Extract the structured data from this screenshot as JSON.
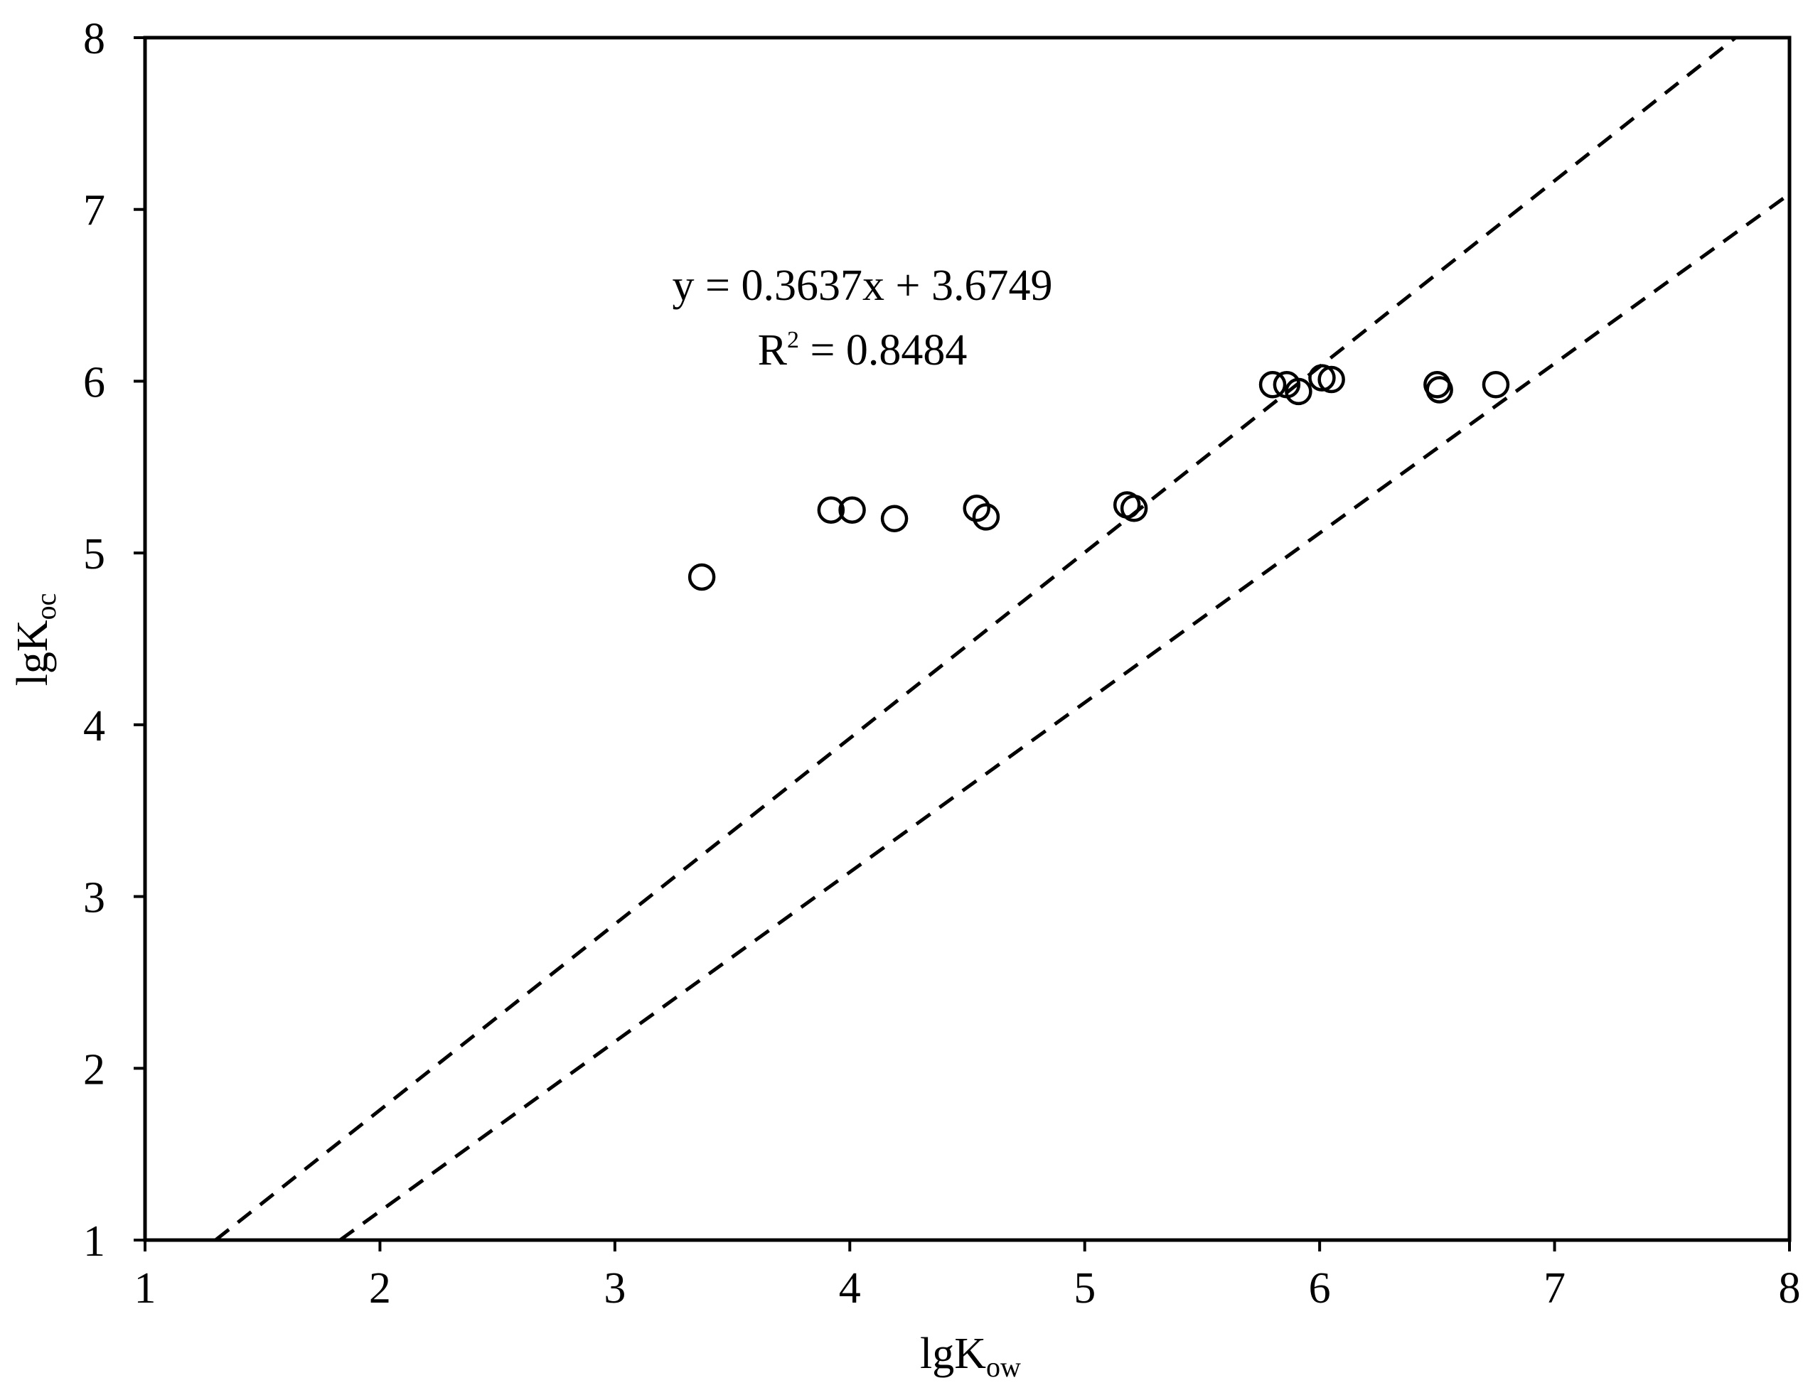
{
  "chart_data": {
    "type": "scatter",
    "xlabel": {
      "base": "lgK",
      "sub": "ow"
    },
    "ylabel": {
      "base": "lgK",
      "sub": "oc"
    },
    "xlim": [
      1,
      8
    ],
    "ylim": [
      1,
      8
    ],
    "xticks": [
      1,
      2,
      3,
      4,
      5,
      6,
      7,
      8
    ],
    "yticks": [
      1,
      2,
      3,
      4,
      5,
      6,
      7,
      8
    ],
    "grid": false,
    "marker": "open-circle",
    "points": [
      {
        "x": 3.37,
        "y": 4.86
      },
      {
        "x": 3.92,
        "y": 5.25
      },
      {
        "x": 4.01,
        "y": 5.25
      },
      {
        "x": 4.19,
        "y": 5.2
      },
      {
        "x": 4.54,
        "y": 5.26
      },
      {
        "x": 4.58,
        "y": 5.21
      },
      {
        "x": 5.18,
        "y": 5.28
      },
      {
        "x": 5.21,
        "y": 5.26
      },
      {
        "x": 5.8,
        "y": 5.98
      },
      {
        "x": 5.86,
        "y": 5.98
      },
      {
        "x": 5.91,
        "y": 5.94
      },
      {
        "x": 6.01,
        "y": 6.02
      },
      {
        "x": 6.05,
        "y": 6.01
      },
      {
        "x": 6.5,
        "y": 5.98
      },
      {
        "x": 6.51,
        "y": 5.95
      },
      {
        "x": 6.75,
        "y": 5.98
      }
    ],
    "reference_lines": [
      {
        "style": "dashed",
        "x1": 1.3,
        "y1": 1.0,
        "x2": 7.77,
        "y2": 8.0
      },
      {
        "style": "dashed",
        "x1": 1.83,
        "y1": 1.0,
        "x2": 8.0,
        "y2": 7.09
      }
    ],
    "annotation": {
      "equation": "y = 0.3637x + 3.6749",
      "r2_label": "R",
      "r2_sup": "2",
      "r2_value": " = 0.8484"
    }
  }
}
